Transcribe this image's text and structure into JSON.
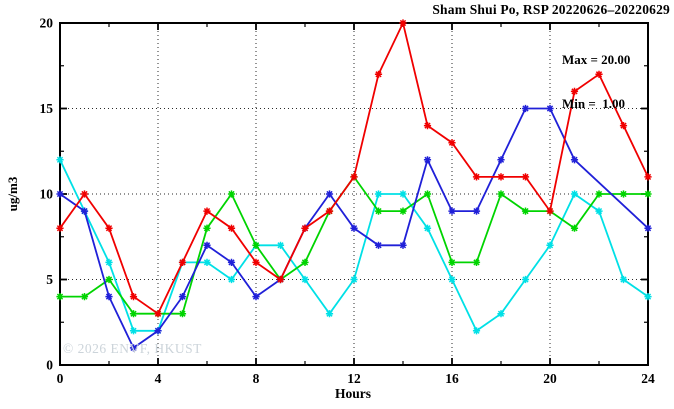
{
  "title": "Sham Shui Po, RSP 20220626–20220629",
  "legend": {
    "max_label": "Max = 20.00",
    "min_label": "Min =  1.00"
  },
  "watermark": "© 2026 ENVF, HKUST",
  "chart_data": {
    "type": "line",
    "title": "Sham Shui Po, RSP 20220626–20220629",
    "xlabel": "Hours",
    "ylabel": "ug/m3",
    "xlim": [
      0,
      24
    ],
    "ylim": [
      0,
      20
    ],
    "x_major_ticks": [
      0,
      4,
      8,
      12,
      16,
      20,
      24
    ],
    "x_minor_ticks": [
      2,
      6,
      10,
      14,
      18,
      22
    ],
    "y_major_ticks": [
      0,
      5,
      10,
      15,
      20
    ],
    "y_minor_ticks": [
      2.5,
      7.5,
      12.5,
      17.5
    ],
    "grid_x": [
      4,
      8,
      12,
      16,
      20
    ],
    "grid_y": [
      5,
      10,
      15
    ],
    "grid_style": "dotted",
    "legend_position": "top-right-inside",
    "stats": {
      "max": 20.0,
      "min": 1.0
    },
    "x": [
      0,
      1,
      2,
      3,
      4,
      5,
      6,
      7,
      8,
      9,
      10,
      11,
      12,
      13,
      14,
      15,
      16,
      17,
      18,
      19,
      20,
      21,
      22,
      23,
      24
    ],
    "series": [
      {
        "name": "series-cyan",
        "color": "#00e0e6",
        "values": [
          12,
          9,
          6,
          2,
          2,
          6,
          6,
          5,
          7,
          7,
          5,
          3,
          5,
          10,
          10,
          8,
          5,
          2,
          3,
          5,
          7,
          10,
          9,
          5,
          4
        ]
      },
      {
        "name": "series-green",
        "color": "#00d400",
        "values": [
          4,
          4,
          5,
          3,
          3,
          3,
          8,
          10,
          7,
          5,
          6,
          9,
          11,
          9,
          9,
          10,
          6,
          6,
          10,
          9,
          9,
          8,
          10,
          10,
          10
        ]
      },
      {
        "name": "series-blue",
        "color": "#2020d8",
        "values": [
          10,
          9,
          4,
          1,
          2,
          4,
          7,
          6,
          4,
          5,
          8,
          10,
          8,
          7,
          7,
          12,
          9,
          9,
          12,
          15,
          15,
          12,
          null,
          null,
          8
        ]
      },
      {
        "name": "series-red",
        "color": "#f00000",
        "values": [
          8,
          10,
          8,
          4,
          3,
          6,
          9,
          8,
          6,
          5,
          8,
          9,
          11,
          17,
          20,
          14,
          13,
          11,
          11,
          11,
          9,
          16,
          17,
          14,
          11
        ]
      }
    ]
  }
}
